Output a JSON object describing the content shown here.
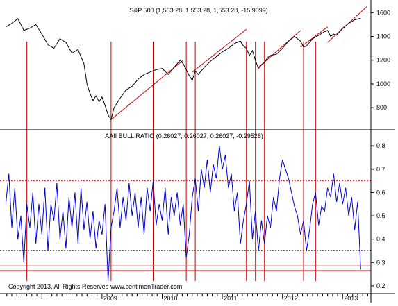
{
  "chart_data": [
    {
      "type": "line",
      "title": "S&P 500 (1,553.28, 1,553.28, 1,553.28, -15.9099)",
      "yticks": [
        800,
        1000,
        1200,
        1400,
        1600
      ],
      "ylim": [
        620,
        1660
      ],
      "grid": false,
      "series": [
        {
          "name": "S&P 500",
          "color": "#000000",
          "x": [
            2007.4,
            2007.5,
            2007.6,
            2007.7,
            2007.8,
            2007.9,
            2008.0,
            2008.1,
            2008.2,
            2008.3,
            2008.4,
            2008.5,
            2008.6,
            2008.7,
            2008.75,
            2008.8,
            2008.85,
            2008.9,
            2008.95,
            2009.0,
            2009.05,
            2009.1,
            2009.15,
            2009.2,
            2009.3,
            2009.4,
            2009.5,
            2009.6,
            2009.7,
            2009.8,
            2009.9,
            2010.0,
            2010.1,
            2010.2,
            2010.3,
            2010.35,
            2010.4,
            2010.45,
            2010.5,
            2010.55,
            2010.6,
            2010.7,
            2010.8,
            2010.9,
            2011.0,
            2011.1,
            2011.2,
            2011.3,
            2011.35,
            2011.4,
            2011.45,
            2011.5,
            2011.55,
            2011.6,
            2011.65,
            2011.7,
            2011.75,
            2011.8,
            2011.9,
            2012.0,
            2012.1,
            2012.2,
            2012.25,
            2012.3,
            2012.35,
            2012.4,
            2012.45,
            2012.5,
            2012.6,
            2012.7,
            2012.75,
            2012.8,
            2012.85,
            2012.9,
            2013.0,
            2013.1,
            2013.2,
            2013.3
          ],
          "values": [
            1480,
            1510,
            1550,
            1450,
            1470,
            1500,
            1420,
            1330,
            1300,
            1380,
            1350,
            1260,
            1290,
            1170,
            1000,
            920,
            860,
            900,
            850,
            890,
            820,
            740,
            700,
            800,
            880,
            950,
            980,
            1040,
            1080,
            1100,
            1120,
            1130,
            1080,
            1140,
            1200,
            1170,
            1120,
            1070,
            1030,
            1110,
            1080,
            1140,
            1190,
            1230,
            1270,
            1300,
            1340,
            1360,
            1320,
            1300,
            1240,
            1280,
            1200,
            1130,
            1160,
            1180,
            1220,
            1240,
            1250,
            1300,
            1360,
            1400,
            1380,
            1360,
            1310,
            1320,
            1350,
            1380,
            1410,
            1440,
            1450,
            1400,
            1420,
            1410,
            1470,
            1510,
            1540,
            1553
          ]
        }
      ],
      "annotations": {
        "trendlines": [
          {
            "x": [
              2009.15,
              2010.35
            ],
            "y": [
              700,
              1200
            ]
          },
          {
            "x": [
              2010.5,
              2011.4
            ],
            "y": [
              1100,
              1460
            ]
          },
          {
            "x": [
              2011.6,
              2012.3
            ],
            "y": [
              1140,
              1450
            ]
          },
          {
            "x": [
              2012.3,
              2012.75
            ],
            "y": [
              1310,
              1480
            ]
          },
          {
            "x": [
              2012.75,
              2013.4
            ],
            "y": [
              1350,
              1650
            ]
          }
        ]
      }
    },
    {
      "type": "line",
      "title": "AAII BULL RATIO (0.26027, 0.26027, 0.26027, -0.29528)",
      "yticks": [
        0.2,
        0.3,
        0.4,
        0.5,
        0.6,
        0.7,
        0.8
      ],
      "ylim": [
        0.17,
        0.86
      ],
      "xticks": [
        "2009",
        "2010",
        "2011",
        "2012",
        "2013"
      ],
      "xtick_values": [
        2009,
        2010,
        2011,
        2012,
        2013
      ],
      "xlim": [
        2007.35,
        2013.47
      ],
      "grid": false,
      "series": [
        {
          "name": "AAII Bull Ratio",
          "color": "#0000cc",
          "x": [
            2007.4,
            2007.45,
            2007.5,
            2007.55,
            2007.6,
            2007.65,
            2007.7,
            2007.75,
            2007.8,
            2007.85,
            2007.9,
            2007.95,
            2008.0,
            2008.05,
            2008.1,
            2008.15,
            2008.2,
            2008.25,
            2008.3,
            2008.35,
            2008.4,
            2008.45,
            2008.5,
            2008.55,
            2008.6,
            2008.65,
            2008.7,
            2008.75,
            2008.8,
            2008.85,
            2008.9,
            2008.95,
            2009.0,
            2009.05,
            2009.1,
            2009.15,
            2009.2,
            2009.25,
            2009.3,
            2009.35,
            2009.4,
            2009.45,
            2009.5,
            2009.55,
            2009.6,
            2009.65,
            2009.7,
            2009.75,
            2009.8,
            2009.85,
            2009.9,
            2009.95,
            2010.0,
            2010.05,
            2010.1,
            2010.15,
            2010.2,
            2010.25,
            2010.3,
            2010.35,
            2010.4,
            2010.45,
            2010.5,
            2010.55,
            2010.6,
            2010.65,
            2010.7,
            2010.75,
            2010.8,
            2010.85,
            2010.9,
            2010.95,
            2011.0,
            2011.05,
            2011.1,
            2011.15,
            2011.2,
            2011.25,
            2011.3,
            2011.35,
            2011.4,
            2011.45,
            2011.5,
            2011.55,
            2011.6,
            2011.65,
            2011.7,
            2011.75,
            2011.8,
            2011.85,
            2011.9,
            2011.95,
            2012.0,
            2012.05,
            2012.1,
            2012.15,
            2012.2,
            2012.25,
            2012.3,
            2012.35,
            2012.4,
            2012.45,
            2012.5,
            2012.55,
            2012.6,
            2012.65,
            2012.7,
            2012.75,
            2012.8,
            2012.85,
            2012.9,
            2012.95,
            2013.0,
            2013.05,
            2013.1,
            2013.15,
            2013.2,
            2013.25,
            2013.3
          ],
          "values": [
            0.55,
            0.68,
            0.45,
            0.62,
            0.4,
            0.5,
            0.3,
            0.55,
            0.45,
            0.6,
            0.38,
            0.55,
            0.42,
            0.62,
            0.35,
            0.55,
            0.48,
            0.64,
            0.4,
            0.52,
            0.36,
            0.58,
            0.45,
            0.6,
            0.38,
            0.62,
            0.44,
            0.56,
            0.4,
            0.52,
            0.36,
            0.48,
            0.42,
            0.55,
            0.22,
            0.45,
            0.52,
            0.62,
            0.45,
            0.58,
            0.48,
            0.64,
            0.5,
            0.6,
            0.45,
            0.58,
            0.42,
            0.62,
            0.52,
            0.65,
            0.46,
            0.55,
            0.48,
            0.62,
            0.42,
            0.58,
            0.5,
            0.6,
            0.46,
            0.55,
            0.32,
            0.42,
            0.58,
            0.66,
            0.52,
            0.7,
            0.62,
            0.74,
            0.6,
            0.72,
            0.66,
            0.8,
            0.7,
            0.76,
            0.62,
            0.68,
            0.52,
            0.6,
            0.38,
            0.48,
            0.55,
            0.65,
            0.4,
            0.52,
            0.35,
            0.48,
            0.38,
            0.5,
            0.45,
            0.58,
            0.52,
            0.66,
            0.74,
            0.7,
            0.66,
            0.6,
            0.54,
            0.5,
            0.42,
            0.48,
            0.35,
            0.44,
            0.55,
            0.6,
            0.46,
            0.54,
            0.52,
            0.62,
            0.58,
            0.68,
            0.56,
            0.64,
            0.55,
            0.62,
            0.5,
            0.58,
            0.44,
            0.56,
            0.27
          ]
        }
      ],
      "reference_lines": [
        {
          "y": 0.65,
          "color": "#e02020",
          "style": "dotted"
        },
        {
          "y": 0.35,
          "color": "#2a8f2a",
          "style": "dotted"
        },
        {
          "y": 0.285,
          "color": "#cc0000",
          "style": "solid"
        },
        {
          "y": 0.265,
          "color": "#cc0000",
          "style": "solid"
        }
      ],
      "vertical_markers": [
        2007.75,
        2009.15,
        2009.85,
        2010.4,
        2010.55,
        2011.4,
        2011.55,
        2011.7,
        2012.35,
        2012.55
      ]
    }
  ],
  "copyright": "Copyright 2013, All Rights Reserved  www.sentimenTrader.com"
}
